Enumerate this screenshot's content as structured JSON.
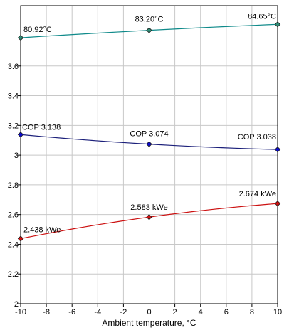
{
  "chart_data": {
    "type": "line",
    "xlabel": "Ambient temperature, °C",
    "ylabel": "",
    "xlim": [
      -10,
      10
    ],
    "ylim": [
      2,
      4
    ],
    "xticks": [
      -10,
      -8,
      -6,
      -4,
      -2,
      0,
      2,
      4,
      6,
      8,
      10
    ],
    "yticks": [
      2,
      2.2,
      2.4,
      2.6,
      2.8,
      3,
      3.2,
      3.4,
      3.6
    ],
    "grid": true,
    "series": [
      {
        "key": "temperature",
        "color": "#0f8a8a",
        "marker_color": "#2e8b74",
        "x": [
          -10,
          0,
          10
        ],
        "values": [
          3.79,
          3.84,
          3.88
        ],
        "point_labels": [
          "80.92°C",
          "83.20°C",
          "84.65°C"
        ]
      },
      {
        "key": "cop",
        "color": "#1b1f7a",
        "marker_color": "#0a0ad0",
        "x": [
          -10,
          0,
          10
        ],
        "values": [
          3.138,
          3.074,
          3.038
        ],
        "point_labels": [
          "COP 3.138",
          "COP 3.074",
          "COP 3.038"
        ]
      },
      {
        "key": "power",
        "color": "#cc1111",
        "marker_color": "#d01010",
        "x": [
          -10,
          0,
          10
        ],
        "values": [
          2.438,
          2.583,
          2.674
        ],
        "point_labels": [
          "2.438 kWe",
          "2.583 kWe",
          "2.674 kWe"
        ]
      }
    ]
  }
}
